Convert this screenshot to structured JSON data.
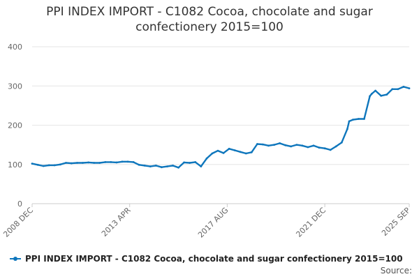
{
  "chart_data": {
    "type": "line",
    "title_line1": "PPI INDEX IMPORT - C1082 Cocoa, chocolate and sugar",
    "title_line2": "confectionery 2015=100",
    "y_ticks": [
      "0",
      "100",
      "200",
      "300",
      "400"
    ],
    "ylim": [
      0,
      400
    ],
    "x_ticks": [
      "2008 DEC",
      "2013 APR",
      "2017 AUG",
      "2021 DEC",
      "2025 SEP"
    ],
    "grid": "horizontal",
    "legend_position": "bottom",
    "source_label": "Source:",
    "color": "#0e76bc",
    "series": [
      {
        "name": "PPI INDEX IMPORT - C1082 Cocoa, chocolate and sugar confectionery 2015=100",
        "x": [
          "2008-12",
          "2009-03",
          "2009-06",
          "2009-09",
          "2009-12",
          "2010-03",
          "2010-06",
          "2010-09",
          "2010-12",
          "2011-03",
          "2011-06",
          "2011-09",
          "2011-12",
          "2012-03",
          "2012-06",
          "2012-09",
          "2012-12",
          "2013-03",
          "2013-06",
          "2013-09",
          "2013-12",
          "2014-03",
          "2014-06",
          "2014-09",
          "2014-12",
          "2015-03",
          "2015-06",
          "2015-09",
          "2015-12",
          "2016-03",
          "2016-06",
          "2016-09",
          "2016-12",
          "2017-03",
          "2017-06",
          "2017-09",
          "2017-12",
          "2018-03",
          "2018-06",
          "2018-09",
          "2018-12",
          "2019-03",
          "2019-06",
          "2019-09",
          "2019-12",
          "2020-03",
          "2020-06",
          "2020-09",
          "2020-12",
          "2021-03",
          "2021-06",
          "2021-09",
          "2021-12",
          "2022-03",
          "2022-06",
          "2022-09",
          "2022-12",
          "2023-01",
          "2023-03",
          "2023-06",
          "2023-09",
          "2023-12",
          "2024-01",
          "2024-03",
          "2024-06",
          "2024-09",
          "2024-12",
          "2025-03",
          "2025-06",
          "2025-09"
        ],
        "values": [
          102,
          99,
          96,
          98,
          98,
          100,
          104,
          103,
          104,
          104,
          105,
          104,
          104,
          106,
          106,
          105,
          107,
          107,
          106,
          99,
          97,
          95,
          97,
          93,
          95,
          97,
          92,
          105,
          104,
          106,
          95,
          115,
          128,
          135,
          129,
          140,
          136,
          132,
          128,
          131,
          152,
          151,
          148,
          150,
          154,
          149,
          146,
          150,
          148,
          144,
          148,
          143,
          141,
          137,
          146,
          156,
          190,
          210,
          214,
          216,
          216,
          274,
          280,
          288,
          275,
          278,
          292,
          292,
          298,
          294
        ]
      }
    ]
  }
}
